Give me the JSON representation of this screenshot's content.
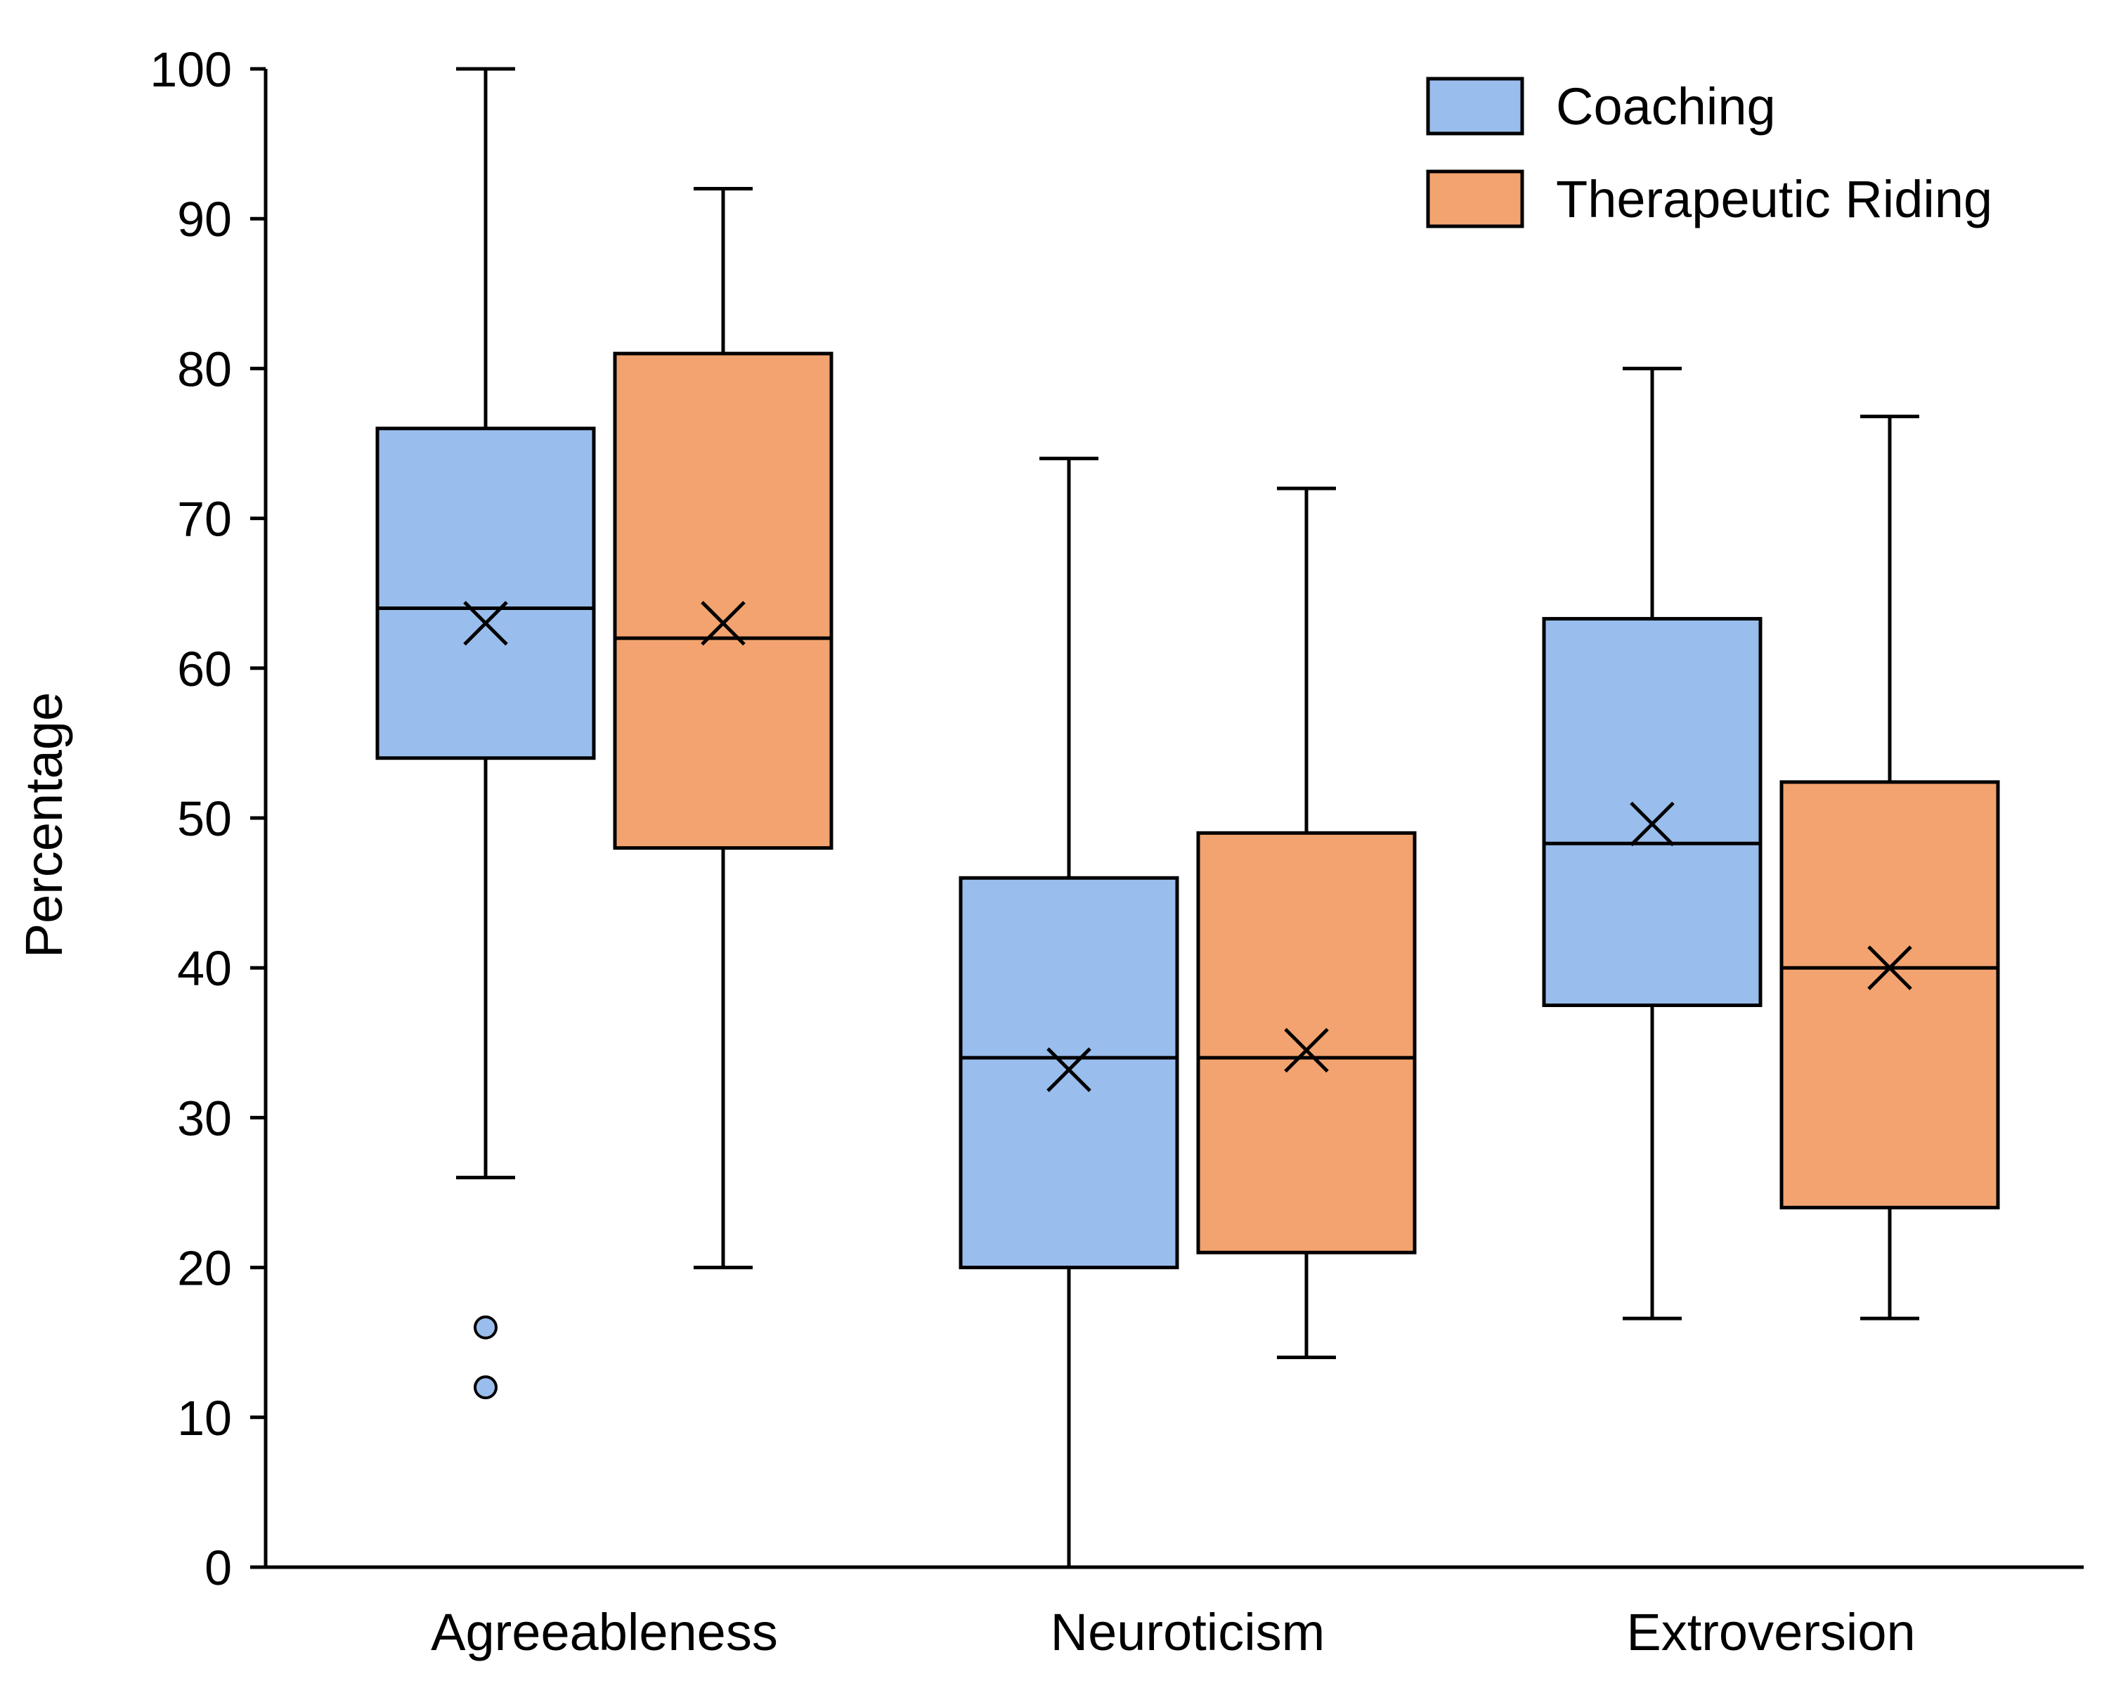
{
  "chart_data": {
    "type": "boxplot",
    "ylabel": "Percentage",
    "xlabel": "",
    "ylim": [
      0,
      100
    ],
    "yticks": [
      0,
      10,
      20,
      30,
      40,
      50,
      60,
      70,
      80,
      90,
      100
    ],
    "categories": [
      "Agreeableness",
      "Neuroticism",
      "Extroversion"
    ],
    "legend_position": "top-right",
    "grid": false,
    "series": [
      {
        "name": "Coaching",
        "color": "#99bdec",
        "boxes": [
          {
            "whisker_low": 26,
            "q1": 54,
            "median": 64,
            "q3": 76,
            "whisker_high": 100,
            "mean": 63,
            "outliers": [
              16,
              12
            ]
          },
          {
            "whisker_low": 0,
            "q1": 20,
            "median": 34,
            "q3": 46,
            "whisker_high": 74,
            "mean": 33.2,
            "outliers": []
          },
          {
            "whisker_low": 16.6,
            "q1": 37.5,
            "median": 48.3,
            "q3": 63.3,
            "whisker_high": 80,
            "mean": 49.6,
            "outliers": []
          }
        ]
      },
      {
        "name": "Therapeutic Riding",
        "color": "#f3a36f",
        "boxes": [
          {
            "whisker_low": 20,
            "q1": 48,
            "median": 62,
            "q3": 81,
            "whisker_high": 92,
            "mean": 63,
            "outliers": []
          },
          {
            "whisker_low": 14,
            "q1": 21,
            "median": 34,
            "q3": 49,
            "whisker_high": 72,
            "mean": 34.5,
            "outliers": []
          },
          {
            "whisker_low": 16.6,
            "q1": 24,
            "median": 40,
            "q3": 52.4,
            "whisker_high": 76.8,
            "mean": 40,
            "outliers": []
          }
        ]
      }
    ]
  }
}
